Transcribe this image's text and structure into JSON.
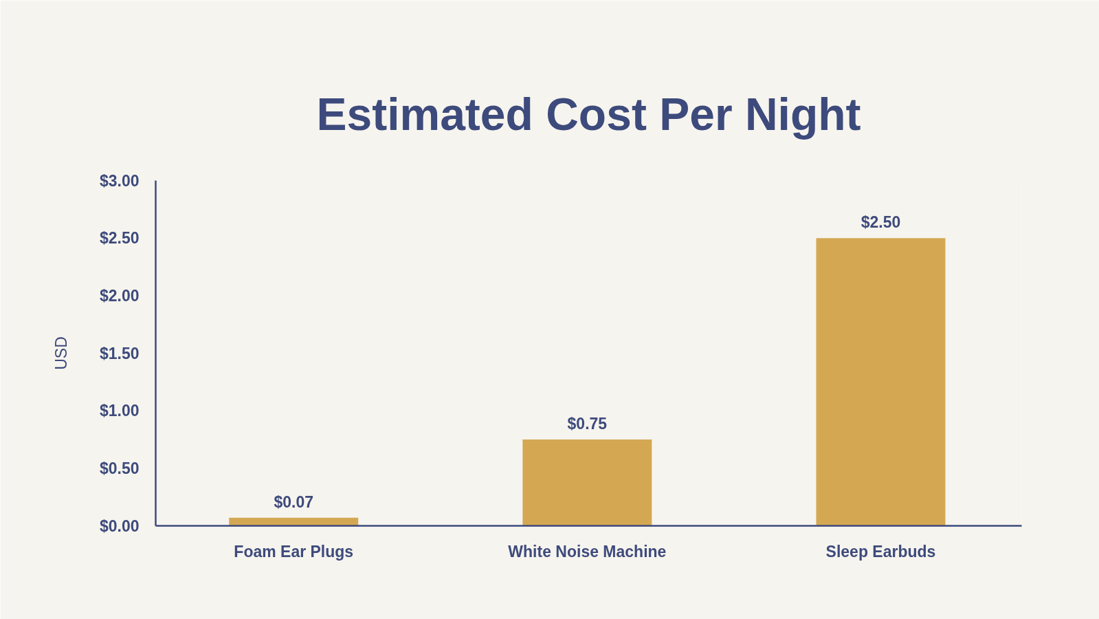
{
  "chart_data": {
    "type": "bar",
    "title": "Estimated Cost Per Night",
    "ylabel": "USD",
    "categories": [
      "Foam Ear Plugs",
      "White Noise Machine",
      "Sleep Earbuds"
    ],
    "values": [
      0.07,
      0.75,
      2.5
    ],
    "color": "#d4a853",
    "value_labels": [
      "$0.07",
      "$0.75",
      "$2.50"
    ],
    "ylim": [
      0,
      3
    ],
    "yticks": [
      {
        "value": 0,
        "label": "$0.00"
      },
      {
        "value": 0.5,
        "label": "$0.50"
      },
      {
        "value": 1,
        "label": "$1.00"
      },
      {
        "value": 1.5,
        "label": "$1.50"
      },
      {
        "value": 2,
        "label": "$2.00"
      },
      {
        "value": 2.5,
        "label": "$2.50"
      },
      {
        "value": 3,
        "label": "$3.00"
      }
    ],
    "grid": false
  }
}
